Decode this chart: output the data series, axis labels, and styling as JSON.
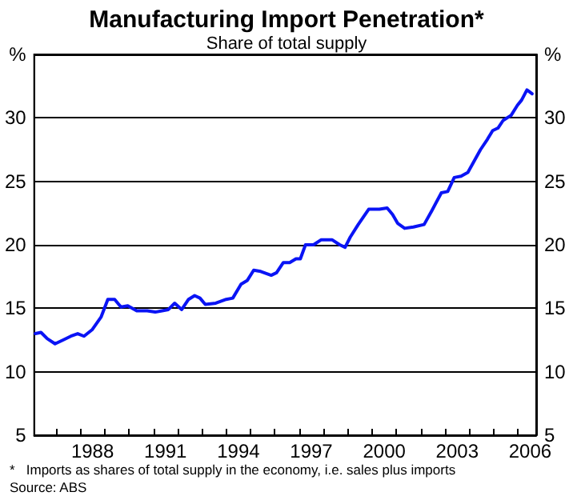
{
  "chart_data": {
    "type": "line",
    "title": "Manufacturing Import Penetration*",
    "subtitle": "Share of total supply",
    "x": [
      1986.15,
      1986.38,
      1986.64,
      1986.96,
      1987.29,
      1987.61,
      1987.89,
      1988.15,
      1988.48,
      1988.85,
      1989.13,
      1989.41,
      1989.67,
      1989.95,
      1990.32,
      1990.75,
      1991.08,
      1991.36,
      1991.62,
      1991.88,
      1992.17,
      1992.45,
      1992.7,
      1992.92,
      1993.14,
      1993.57,
      1994.0,
      1994.27,
      1994.61,
      1994.87,
      1995.13,
      1995.42,
      1995.85,
      1996.07,
      1996.35,
      1996.61,
      1996.87,
      1997.05,
      1997.26,
      1997.59,
      1997.91,
      1998.35,
      1998.67,
      1998.89,
      1999.1,
      1999.43,
      1999.86,
      2000.3,
      2000.62,
      2000.84,
      2001.05,
      2001.34,
      2001.7,
      2002.14,
      2002.46,
      2002.85,
      2003.11,
      2003.38,
      2003.66,
      2003.94,
      2004.2,
      2004.46,
      2004.74,
      2004.96,
      2005.18,
      2005.39,
      2005.72,
      2005.98,
      2006.15,
      2006.37,
      2006.58
    ],
    "series": [
      {
        "color": "#0a14f5",
        "values": [
          13.0,
          13.1,
          12.6,
          12.2,
          12.5,
          12.8,
          13.0,
          12.8,
          13.3,
          14.3,
          15.7,
          15.7,
          15.1,
          15.2,
          14.8,
          14.8,
          14.7,
          14.8,
          14.9,
          15.4,
          14.9,
          15.7,
          16.0,
          15.8,
          15.3,
          15.4,
          15.7,
          15.8,
          16.9,
          17.2,
          18.0,
          17.9,
          17.6,
          17.8,
          18.6,
          18.6,
          18.9,
          18.9,
          20.0,
          20.0,
          20.4,
          20.4,
          20.0,
          19.8,
          20.6,
          21.6,
          22.8,
          22.8,
          22.9,
          22.4,
          21.7,
          21.3,
          21.4,
          21.6,
          22.7,
          24.1,
          24.2,
          25.3,
          25.4,
          25.7,
          26.6,
          27.5,
          28.3,
          29.0,
          29.2,
          29.8,
          30.2,
          31.0,
          31.4,
          32.2,
          31.9
        ]
      }
    ],
    "xlim": [
      1986.1,
      2006.75
    ],
    "xticks": [
      {
        "value": 1987,
        "label": null
      },
      {
        "value": 1988,
        "label": null
      },
      {
        "value": 1988.5,
        "label": "1988"
      },
      {
        "value": 1989,
        "label": null
      },
      {
        "value": 1990,
        "label": null
      },
      {
        "value": 1991,
        "label": null
      },
      {
        "value": 1991.5,
        "label": "1991"
      },
      {
        "value": 1992,
        "label": null
      },
      {
        "value": 1993,
        "label": null
      },
      {
        "value": 1994,
        "label": null
      },
      {
        "value": 1994.5,
        "label": "1994"
      },
      {
        "value": 1995,
        "label": null
      },
      {
        "value": 1996,
        "label": null
      },
      {
        "value": 1997,
        "label": null
      },
      {
        "value": 1997.5,
        "label": "1997"
      },
      {
        "value": 1998,
        "label": null
      },
      {
        "value": 1999,
        "label": null
      },
      {
        "value": 2000,
        "label": null
      },
      {
        "value": 2000.5,
        "label": "2000"
      },
      {
        "value": 2001,
        "label": null
      },
      {
        "value": 2002,
        "label": null
      },
      {
        "value": 2003,
        "label": null
      },
      {
        "value": 2003.5,
        "label": "2003"
      },
      {
        "value": 2004,
        "label": null
      },
      {
        "value": 2005,
        "label": null
      },
      {
        "value": 2006,
        "label": null
      },
      {
        "value": 2006.5,
        "label": "2006"
      }
    ],
    "ylim": [
      5,
      35
    ],
    "yticks": [
      5,
      10,
      15,
      20,
      25,
      30,
      {
        "value": 35,
        "label": "%"
      }
    ],
    "y2lim": [
      5,
      35
    ],
    "y2ticks": [
      5,
      10,
      15,
      20,
      25,
      30,
      {
        "value": 35,
        "label": "%"
      }
    ],
    "grid": "y",
    "marker": "none",
    "line_style": "solid",
    "annotations": [
      "*   Imports as shares of total supply in the economy, i.e. sales plus imports",
      "Source: ABS"
    ]
  }
}
